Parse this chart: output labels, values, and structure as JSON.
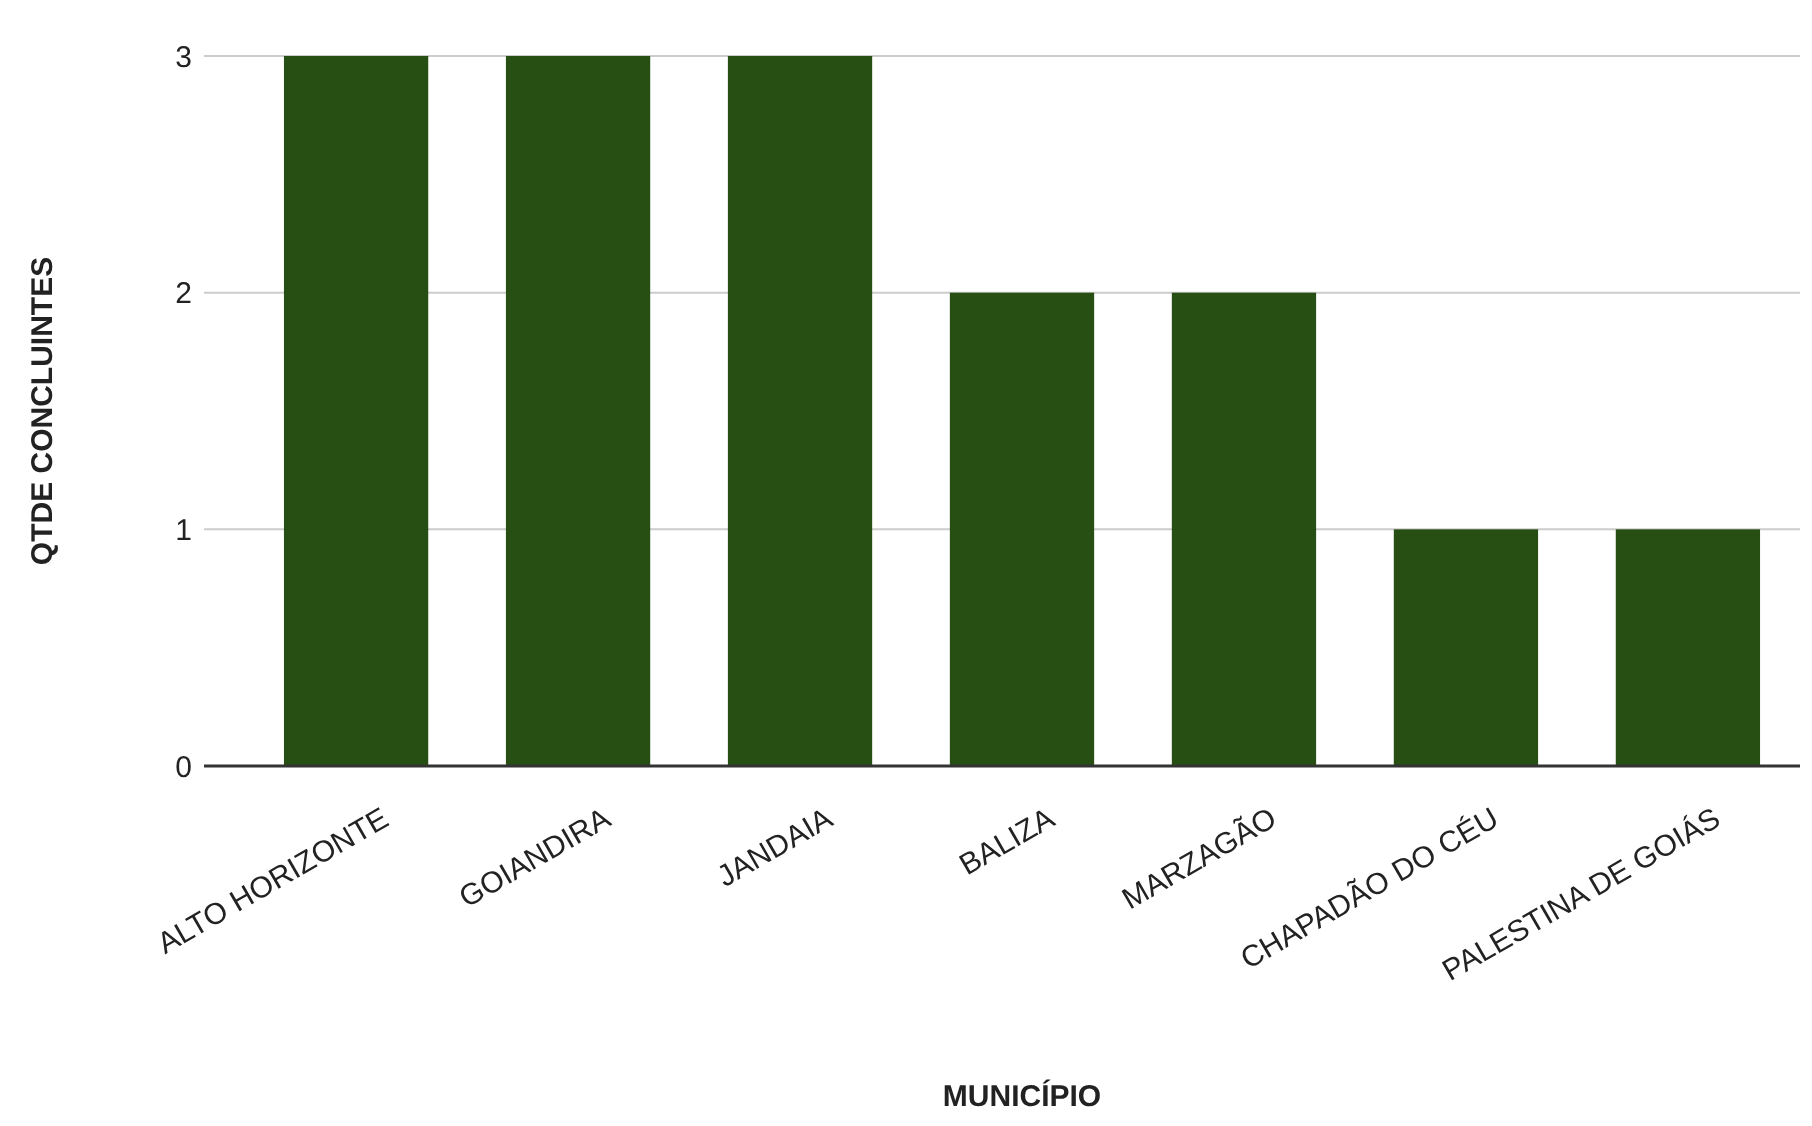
{
  "chart_data": {
    "type": "bar",
    "xlabel": "MUNICÍPIO",
    "ylabel": "QTDE CONCLUINTES",
    "categories": [
      "ALTO HORIZONTE",
      "GOIANDIRA",
      "JANDAIA",
      "BALIZA",
      "MARZAGÃO",
      "CHAPADÃO DO CÉU",
      "PALESTINA DE GOIÁS"
    ],
    "values": [
      3,
      3,
      3,
      2,
      2,
      1,
      1
    ],
    "color": "#274e13",
    "ylim": [
      0,
      3
    ],
    "yticks": [
      0,
      1,
      2,
      3
    ],
    "grid": "y"
  }
}
